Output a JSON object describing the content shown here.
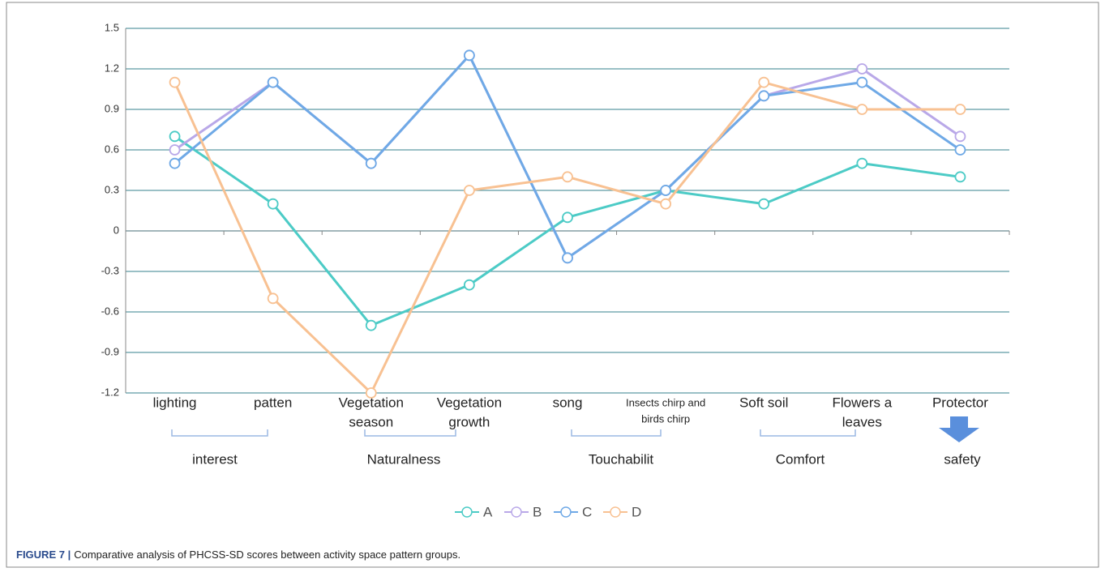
{
  "chart_data": {
    "type": "line",
    "categories": [
      [
        "lighting"
      ],
      [
        "patten"
      ],
      [
        "Vegetation",
        "season"
      ],
      [
        "Vegetation",
        "growth"
      ],
      [
        "song"
      ],
      [
        "Insects chirp and",
        "birds chirp"
      ],
      [
        "Soft soil"
      ],
      [
        "Flowers a",
        "leaves"
      ],
      [
        "Protector"
      ]
    ],
    "series": [
      {
        "name": "A",
        "color": "#4ccbc6",
        "values": [
          0.7,
          0.2,
          -0.7,
          -0.4,
          0.1,
          0.3,
          0.2,
          0.5,
          0.4
        ]
      },
      {
        "name": "B",
        "color": "#b9a8e8",
        "values": [
          0.6,
          1.1,
          0.5,
          1.3,
          -0.2,
          0.3,
          1.0,
          1.2,
          0.7
        ]
      },
      {
        "name": "C",
        "color": "#6fa9e6",
        "values": [
          0.5,
          1.1,
          0.5,
          1.3,
          -0.2,
          0.3,
          1.0,
          1.1,
          0.6
        ]
      },
      {
        "name": "D",
        "color": "#f8c192",
        "values": [
          1.1,
          -0.5,
          -1.2,
          0.3,
          0.4,
          0.2,
          1.1,
          0.9,
          0.9
        ]
      }
    ],
    "groups": [
      "interest",
      "Naturalness",
      "Touchabilit",
      "Comfort",
      "safety"
    ],
    "ylim": [
      -1.2,
      1.5
    ],
    "yticks": [
      -1.2,
      -0.9,
      -0.6,
      -0.3,
      0,
      0.3,
      0.6,
      0.9,
      1.2,
      1.5
    ],
    "grid": true,
    "legend": "bottom",
    "caption": {
      "label": "FIGURE 7 |",
      "text": "Comparative analysis of PHCSS-SD scores between activity space pattern groups."
    }
  }
}
